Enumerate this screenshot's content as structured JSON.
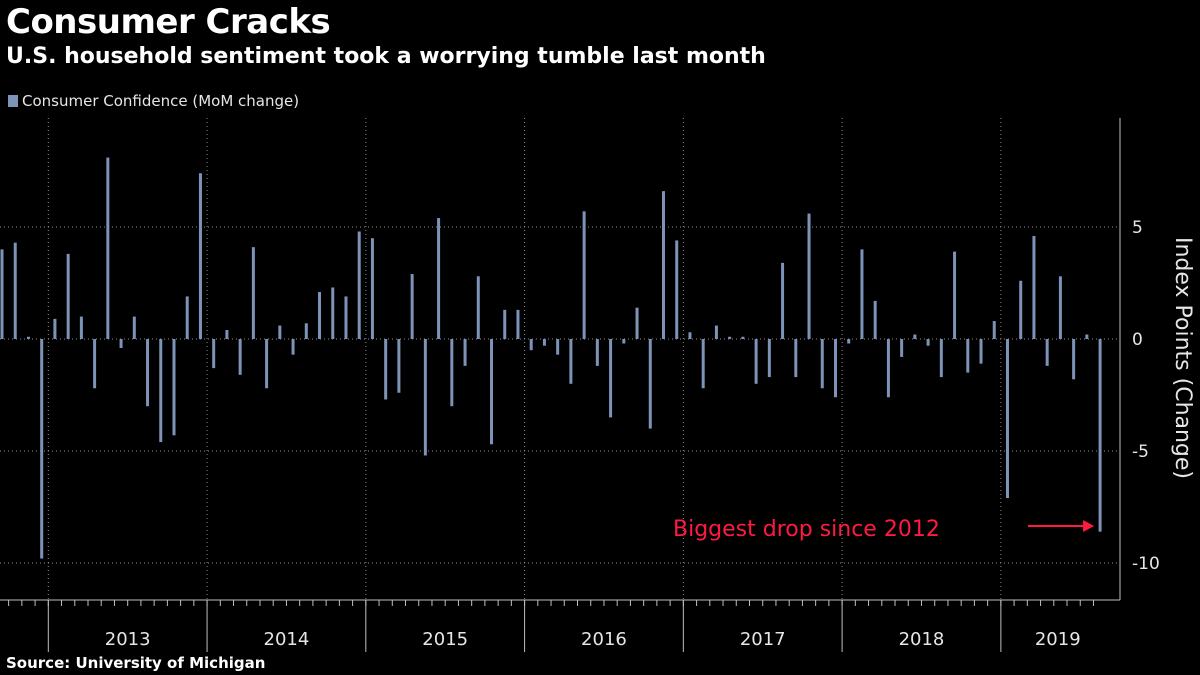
{
  "header": {
    "title": "Consumer Cracks",
    "subtitle": "U.S. household sentiment took a worrying tumble last month"
  },
  "footer": {
    "source": "Source: University of Michigan"
  },
  "colors": {
    "bar": "#7e93b8",
    "annotation": "#ff1a40",
    "grid": "#8c8c8c",
    "background": "#000000"
  },
  "chart_data": {
    "type": "bar",
    "title": "Consumer Cracks",
    "subtitle": "U.S. household sentiment took a worrying tumble last month",
    "legend": [
      {
        "name": "Consumer Confidence (MoM change)",
        "color": "#7e93b8"
      }
    ],
    "legend_position": "top-left",
    "xlabel": "",
    "ylabel": "Index Points (Change)",
    "y_axis_side": "right",
    "ylim": [
      -11.8,
      10
    ],
    "yticks": [
      5,
      0,
      -5,
      -10
    ],
    "ytick_labels": [
      "5",
      "0",
      "-5",
      "-10"
    ],
    "grid": true,
    "x_start": "2012-09",
    "year_labels": [
      "2013",
      "2014",
      "2015",
      "2016",
      "2017",
      "2018",
      "2019"
    ],
    "series": [
      {
        "name": "Consumer Confidence (MoM change)",
        "values": [
          4.0,
          4.3,
          0.1,
          -9.8,
          0.9,
          3.8,
          1.0,
          -2.2,
          8.1,
          -0.4,
          1.0,
          -3.0,
          -4.6,
          -4.3,
          1.9,
          7.4,
          -1.3,
          0.4,
          -1.6,
          4.1,
          -2.2,
          0.6,
          -0.7,
          0.7,
          2.1,
          2.3,
          1.9,
          4.8,
          4.5,
          -2.7,
          -2.4,
          2.9,
          -5.2,
          5.4,
          -3.0,
          -1.2,
          2.8,
          -4.7,
          1.3,
          1.3,
          -0.5,
          -0.3,
          -0.7,
          -2.0,
          5.7,
          -1.2,
          -3.5,
          -0.2,
          1.4,
          -4.0,
          6.6,
          4.4,
          0.3,
          -2.2,
          0.6,
          0.1,
          0.1,
          -2.0,
          -1.7,
          3.4,
          -1.7,
          5.6,
          -2.2,
          -2.6,
          -0.2,
          4.0,
          1.7,
          -2.6,
          -0.8,
          0.2,
          -0.3,
          -1.7,
          3.9,
          -1.5,
          -1.1,
          0.8,
          -7.1,
          2.6,
          4.6,
          -1.2,
          2.8,
          -1.8,
          0.2,
          -8.6
        ]
      }
    ],
    "annotations": [
      {
        "text": "Biggest drop since 2012",
        "color": "#ff1a40",
        "points_to": "last bar (-8.6)",
        "arrow": true
      }
    ]
  }
}
